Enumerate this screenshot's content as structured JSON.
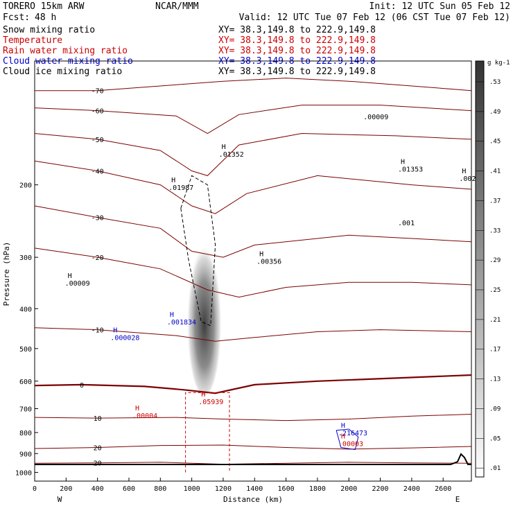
{
  "header": {
    "model": "TORERO   15km ARW",
    "org": "NCAR/MMM",
    "init": "Init: 12 UTC Sun 05 Feb 12",
    "fcst_label": "Fcst:",
    "fcst_value": "48 h",
    "valid": "Valid: 12 UTC Tue 07 Feb 12 (06 CST Tue 07 Feb 12)"
  },
  "fields": [
    {
      "name": "Snow mixing ratio",
      "xy": "XY=  38.3,149.8 to 222.9,149.8",
      "color": "#000000"
    },
    {
      "name": "Temperature",
      "xy": "XY=  38.3,149.8 to 222.9,149.8",
      "color": "#cc0000"
    },
    {
      "name": "Rain water mixing ratio",
      "xy": "XY=  38.3,149.8 to 222.9,149.8",
      "color": "#cc0000"
    },
    {
      "name": "Cloud water mixing ratio",
      "xy": "XY=  38.3,149.8 to 222.9,149.8",
      "color": "#0000cc"
    },
    {
      "name": "Cloud ice mixing ratio",
      "xy": "XY=  38.3,149.8 to 222.9,149.8",
      "color": "#000000"
    }
  ],
  "colors": {
    "temperature": "#7a0000",
    "rain": "#d40000",
    "cloud_water": "#0000cc",
    "ice": "#000000",
    "snow_shade": "#333333"
  },
  "chart_data": {
    "type": "contour cross-section",
    "xlabel": "Distance (km)",
    "ylabel": "Pressure (hPa)",
    "xlim": [
      0,
      2780
    ],
    "ylim": [
      1050,
      100
    ],
    "y_scale": "log",
    "x_ticks": [
      0,
      200,
      400,
      600,
      800,
      1000,
      1200,
      1400,
      1600,
      1800,
      2000,
      2200,
      2400,
      2600
    ],
    "y_ticks": [
      200,
      300,
      400,
      500,
      600,
      700,
      800,
      900,
      1000
    ],
    "west_label": "W",
    "east_label": "E",
    "colorbar": {
      "unit": "g kg-1",
      "levels": [
        ".01",
        ".05",
        ".09",
        ".13",
        ".17",
        ".21",
        ".25",
        ".29",
        ".33",
        ".37",
        ".41",
        ".45",
        ".49",
        ".53"
      ]
    },
    "temperature_contours": [
      {
        "value": -70,
        "label": "-70",
        "p": [
          [
            0,
            118
          ],
          [
            400,
            118
          ],
          [
            800,
            115
          ],
          [
            1200,
            112
          ],
          [
            1600,
            110
          ],
          [
            2000,
            112
          ],
          [
            2400,
            115
          ],
          [
            2780,
            118
          ]
        ]
      },
      {
        "value": -60,
        "label": "-60",
        "p": [
          [
            0,
            130
          ],
          [
            400,
            132
          ],
          [
            900,
            136
          ],
          [
            1100,
            150
          ],
          [
            1300,
            135
          ],
          [
            1700,
            128
          ],
          [
            2200,
            128
          ],
          [
            2780,
            132
          ]
        ]
      },
      {
        "value": -50,
        "label": "-50",
        "p": [
          [
            0,
            150
          ],
          [
            400,
            155
          ],
          [
            800,
            165
          ],
          [
            1000,
            185
          ],
          [
            1100,
            190
          ],
          [
            1300,
            160
          ],
          [
            1700,
            150
          ],
          [
            2300,
            152
          ],
          [
            2780,
            155
          ]
        ]
      },
      {
        "value": -40,
        "label": "-40",
        "p": [
          [
            0,
            175
          ],
          [
            400,
            185
          ],
          [
            800,
            200
          ],
          [
            1000,
            225
          ],
          [
            1150,
            235
          ],
          [
            1350,
            210
          ],
          [
            1800,
            190
          ],
          [
            2400,
            200
          ],
          [
            2780,
            205
          ]
        ]
      },
      {
        "value": -30,
        "label": "-30",
        "p": [
          [
            0,
            225
          ],
          [
            400,
            240
          ],
          [
            800,
            255
          ],
          [
            1000,
            290
          ],
          [
            1200,
            300
          ],
          [
            1400,
            280
          ],
          [
            2000,
            265
          ],
          [
            2400,
            270
          ],
          [
            2780,
            275
          ]
        ]
      },
      {
        "value": -20,
        "label": "-20",
        "p": [
          [
            0,
            285
          ],
          [
            400,
            300
          ],
          [
            800,
            320
          ],
          [
            1100,
            360
          ],
          [
            1300,
            375
          ],
          [
            1600,
            355
          ],
          [
            2000,
            345
          ],
          [
            2400,
            345
          ],
          [
            2780,
            350
          ]
        ]
      },
      {
        "value": -10,
        "label": "-10",
        "p": [
          [
            0,
            445
          ],
          [
            400,
            450
          ],
          [
            900,
            465
          ],
          [
            1150,
            480
          ],
          [
            1400,
            470
          ],
          [
            1800,
            455
          ],
          [
            2200,
            450
          ],
          [
            2780,
            455
          ]
        ]
      },
      {
        "value": 0,
        "label": "0",
        "p": [
          [
            0,
            615
          ],
          [
            300,
            612
          ],
          [
            700,
            618
          ],
          [
            950,
            630
          ],
          [
            1150,
            642
          ],
          [
            1400,
            612
          ],
          [
            1800,
            600
          ],
          [
            2300,
            590
          ],
          [
            2780,
            580
          ]
        ]
      },
      {
        "value": 10,
        "label": "10",
        "p": [
          [
            0,
            735
          ],
          [
            400,
            738
          ],
          [
            900,
            735
          ],
          [
            1200,
            742
          ],
          [
            1600,
            748
          ],
          [
            2000,
            742
          ],
          [
            2400,
            730
          ],
          [
            2780,
            722
          ]
        ]
      },
      {
        "value": 20,
        "label": "20",
        "p": [
          [
            0,
            875
          ],
          [
            400,
            870
          ],
          [
            800,
            860
          ],
          [
            1200,
            858
          ],
          [
            1600,
            870
          ],
          [
            2000,
            878
          ],
          [
            2400,
            872
          ],
          [
            2780,
            865
          ]
        ]
      },
      {
        "value": 20,
        "label": "20",
        "p": [
          [
            0,
            950
          ],
          [
            400,
            948
          ],
          [
            800,
            945
          ],
          [
            1200,
            955
          ],
          [
            1600,
            950
          ],
          [
            2000,
            945
          ],
          [
            2400,
            948
          ],
          [
            2780,
            950
          ]
        ]
      }
    ],
    "ice_contours": [
      {
        "label": ".001",
        "p": [
          [
            930,
            228
          ],
          [
            980,
            305
          ],
          [
            1060,
            430
          ],
          [
            1120,
            440
          ],
          [
            1150,
            280
          ],
          [
            1100,
            200
          ],
          [
            1000,
            190
          ],
          [
            930,
            228
          ]
        ]
      }
    ],
    "snow_core": {
      "center": [
        1080,
        480
      ],
      "half_width_km": 110,
      "top_p": 270,
      "bottom_p": 650
    },
    "rain_contours": [
      {
        "label": ".001",
        "p": [
          [
            960,
            1000
          ],
          [
            960,
            640
          ],
          [
            1240,
            640
          ],
          [
            1240,
            1000
          ]
        ]
      }
    ],
    "cloud_water_contours": [
      {
        "label": ".216473",
        "p": [
          [
            1920,
            790
          ],
          [
            2000,
            785
          ],
          [
            2060,
            820
          ],
          [
            2040,
            880
          ],
          [
            1950,
            870
          ],
          [
            1920,
            790
          ]
        ]
      }
    ],
    "extrema": [
      {
        "label": "H",
        "value": ".01352",
        "x": 1190,
        "p": 170,
        "color": "#000000"
      },
      {
        "label": "H",
        "value": ".01987",
        "x": 870,
        "p": 205,
        "color": "#000000"
      },
      {
        "label": "H",
        "value": ".00009",
        "x": 210,
        "p": 350,
        "color": "#000000"
      },
      {
        "label": "H",
        "value": ".00356",
        "x": 1430,
        "p": 310,
        "color": "#000000"
      },
      {
        "label": "H",
        "value": ".001834",
        "x": 860,
        "p": 435,
        "color": "#0000cc"
      },
      {
        "label": "H",
        "value": ".000028",
        "x": 500,
        "p": 475,
        "color": "#0000cc"
      },
      {
        "label": "H",
        "value": ".05939",
        "x": 1060,
        "p": 680,
        "color": "#cc0000"
      },
      {
        "label": "H",
        "value": ".00004",
        "x": 640,
        "p": 735,
        "color": "#cc0000"
      },
      {
        "label": "H",
        "value": ".216473",
        "x": 1950,
        "p": 810,
        "color": "#0000cc"
      },
      {
        "label": "H",
        "value": ".00003",
        "x": 1950,
        "p": 860,
        "color": "#cc0000"
      },
      {
        "label": "",
        "value": ".00009",
        "x": 2110,
        "p": 138,
        "color": "#000000"
      },
      {
        "label": "H",
        "value": ".01353",
        "x": 2330,
        "p": 185,
        "color": "#000000"
      },
      {
        "label": "H",
        "value": ".002",
        "x": 2720,
        "p": 195,
        "color": "#000000"
      },
      {
        "label": "",
        "value": ".001",
        "x": 2330,
        "p": 250,
        "color": "#000000"
      }
    ]
  }
}
